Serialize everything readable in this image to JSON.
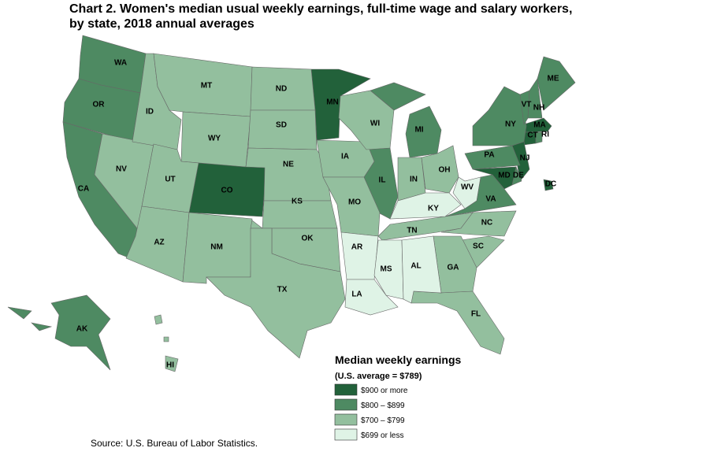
{
  "title": [
    "Chart 2. Women's median usual weekly earnings, full-time wage and salary workers,",
    "by state, 2018 annual averages"
  ],
  "legend": {
    "title": "Median weekly earnings",
    "subtitle": "(U.S. average = $789)",
    "classes": [
      {
        "label": "$900 or more",
        "color": "#22613a",
        "states": [
          "MN",
          "CO",
          "MA",
          "CT",
          "NJ",
          "MD",
          "DC"
        ]
      },
      {
        "label": "$800 – $899",
        "color": "#4e8a62",
        "states": [
          "WA",
          "OR",
          "CA",
          "AK",
          "IL",
          "MI",
          "PA",
          "NY",
          "VT",
          "NH",
          "ME",
          "VA",
          "DE",
          "RI"
        ]
      },
      {
        "label": "$700 – $799",
        "color": "#93bf9e",
        "states": [
          "NV",
          "ID",
          "MT",
          "WY",
          "UT",
          "AZ",
          "NM",
          "ND",
          "SD",
          "NE",
          "KS",
          "OK",
          "TX",
          "IA",
          "MO",
          "WI",
          "IN",
          "OH",
          "TN",
          "NC",
          "SC",
          "GA",
          "FL",
          "HI"
        ]
      },
      {
        "label": "$699 or less",
        "color": "#dff3e6",
        "states": [
          "AR",
          "LA",
          "MS",
          "AL",
          "KY",
          "WV"
        ]
      }
    ]
  },
  "source": "Source: U.S. Bureau of Labor Statistics."
}
